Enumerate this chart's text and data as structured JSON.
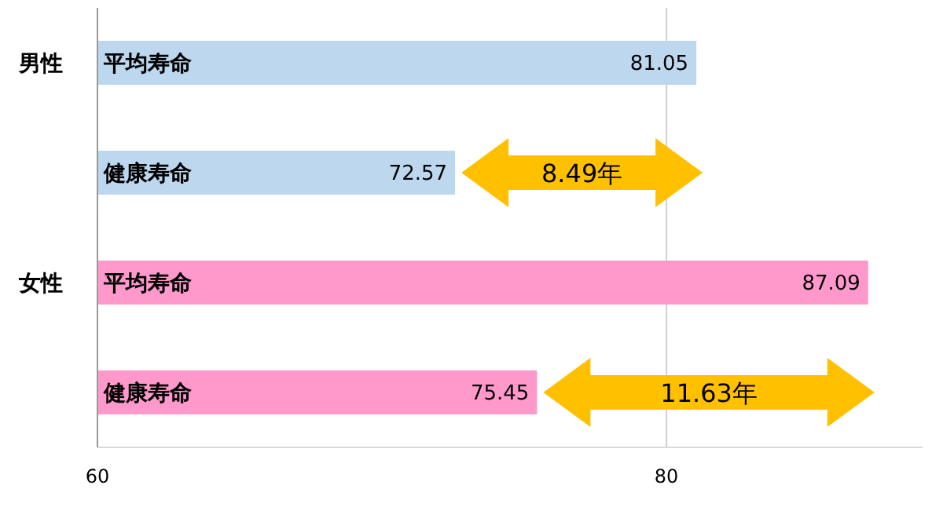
{
  "chart_data": {
    "type": "bar",
    "orientation": "horizontal",
    "categories": [
      "平均寿命",
      "健康寿命",
      "平均寿命",
      "健康寿命"
    ],
    "values": [
      81.05,
      72.57,
      87.09,
      75.45
    ],
    "colors": [
      "#bdd7ee",
      "#bdd7ee",
      "#ff99cc",
      "#ff99cc"
    ],
    "xlim": [
      60,
      89
    ],
    "xticks": [
      60,
      80
    ],
    "grid": "x",
    "data_labels": true,
    "annotations": [
      "男性",
      "女性",
      "8.49年",
      "11.63年"
    ]
  }
}
